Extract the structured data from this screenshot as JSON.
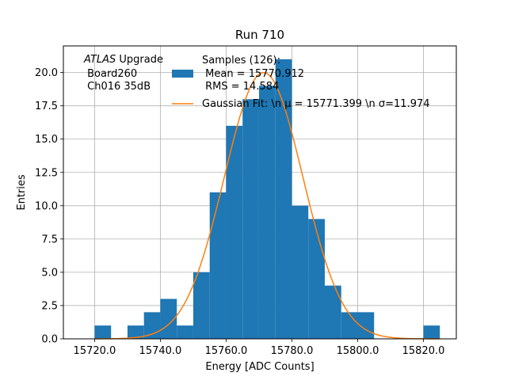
{
  "chart_data": {
    "type": "bar",
    "title": "Run 710",
    "xlabel": "Energy [ADC Counts]",
    "ylabel": "Entries",
    "xlim": [
      15710.5,
      15830.0
    ],
    "ylim": [
      0,
      22.0
    ],
    "x_ticks": [
      15720,
      15740,
      15760,
      15780,
      15800,
      15820
    ],
    "x_tick_labels": [
      "15720.0",
      "15740.0",
      "15760.0",
      "15780.0",
      "15800.0",
      "15820.0"
    ],
    "y_ticks": [
      0,
      2.5,
      5,
      7.5,
      10,
      12.5,
      15,
      17.5,
      20
    ],
    "y_tick_labels": [
      "0.0",
      "2.5",
      "5.0",
      "7.5",
      "10.0",
      "12.5",
      "15.0",
      "17.5",
      "20.0"
    ],
    "grid": true,
    "bin_width": 5.0,
    "bins": [
      {
        "left": 15720,
        "value": 1
      },
      {
        "left": 15725,
        "value": 0
      },
      {
        "left": 15730,
        "value": 1
      },
      {
        "left": 15735,
        "value": 2
      },
      {
        "left": 15740,
        "value": 3
      },
      {
        "left": 15745,
        "value": 1
      },
      {
        "left": 15750,
        "value": 5
      },
      {
        "left": 15755,
        "value": 11
      },
      {
        "left": 15760,
        "value": 16
      },
      {
        "left": 15765,
        "value": 18
      },
      {
        "left": 15770,
        "value": 19
      },
      {
        "left": 15775,
        "value": 21
      },
      {
        "left": 15780,
        "value": 10
      },
      {
        "left": 15785,
        "value": 9
      },
      {
        "left": 15790,
        "value": 4
      },
      {
        "left": 15795,
        "value": 2
      },
      {
        "left": 15800,
        "value": 2
      },
      {
        "left": 15805,
        "value": 0
      },
      {
        "left": 15810,
        "value": 0
      },
      {
        "left": 15815,
        "value": 0
      },
      {
        "left": 15820,
        "value": 1
      }
    ],
    "fit": {
      "mu": 15771.399,
      "sigma": 11.974,
      "amplitude": 20.0,
      "x_range": [
        15720,
        15825
      ]
    },
    "series": [
      {
        "name": "Samples (126):\n Mean = 15770.912\n RMS = 14.584",
        "color": "#1f77b4"
      },
      {
        "name": "Gaussian Fit: \\n $\\mu$ = 15771.399 \\n $\\sigma$=11.974",
        "color": "#ff7f0e"
      }
    ],
    "legend_labels": {
      "samples": [
        "Samples (126):",
        " Mean = 15770.912",
        " RMS = 14.584"
      ],
      "fit": "Gaussian Fit: \\n μ = 15771.399 \\n σ=11.974"
    },
    "annotation": {
      "italic": "ATLAS",
      "rest": " Upgrade",
      "line2": " Board260",
      "line3": " Ch016 35dB"
    },
    "legend_position": "top-right",
    "colors": {
      "bars": "#1f77b4",
      "fit": "#ff7f0e",
      "grid": "#b0b0b0"
    }
  }
}
